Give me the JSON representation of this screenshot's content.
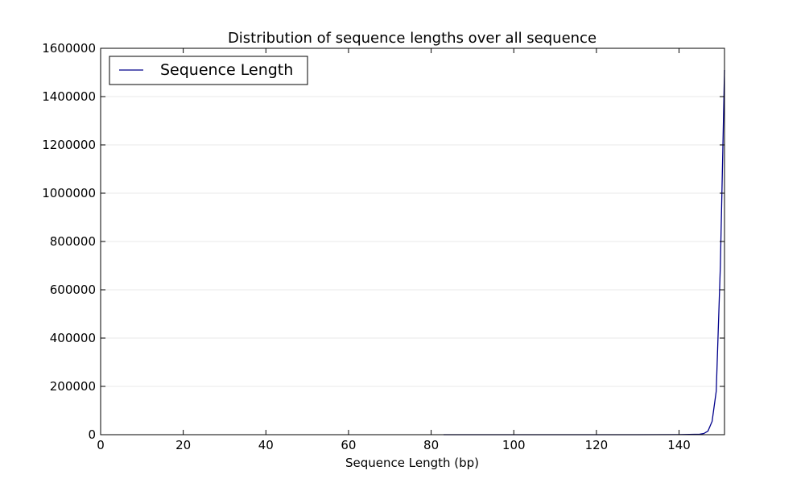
{
  "chart_data": {
    "type": "line",
    "title": "Distribution of sequence lengths over all sequence",
    "xlabel": "Sequence Length (bp)",
    "ylabel": "",
    "xlim": [
      0,
      151
    ],
    "ylim": [
      0,
      1600000
    ],
    "xticks": [
      0,
      20,
      40,
      60,
      80,
      100,
      120,
      140
    ],
    "yticks": [
      0,
      200000,
      400000,
      600000,
      800000,
      1000000,
      1200000,
      1400000,
      1600000
    ],
    "grid": "horizontal",
    "legend_position": "top-left",
    "colors": {
      "series": "#00008b",
      "grid": "#e8e8e8"
    },
    "series": [
      {
        "name": "Sequence Length",
        "x": [
          83,
          90,
          100,
          110,
          120,
          130,
          140,
          145,
          146,
          147,
          148,
          149,
          150,
          151
        ],
        "y": [
          0,
          0,
          0,
          0,
          0,
          0,
          500,
          2000,
          5000,
          15000,
          55000,
          180000,
          700000,
          1510000
        ]
      }
    ]
  }
}
